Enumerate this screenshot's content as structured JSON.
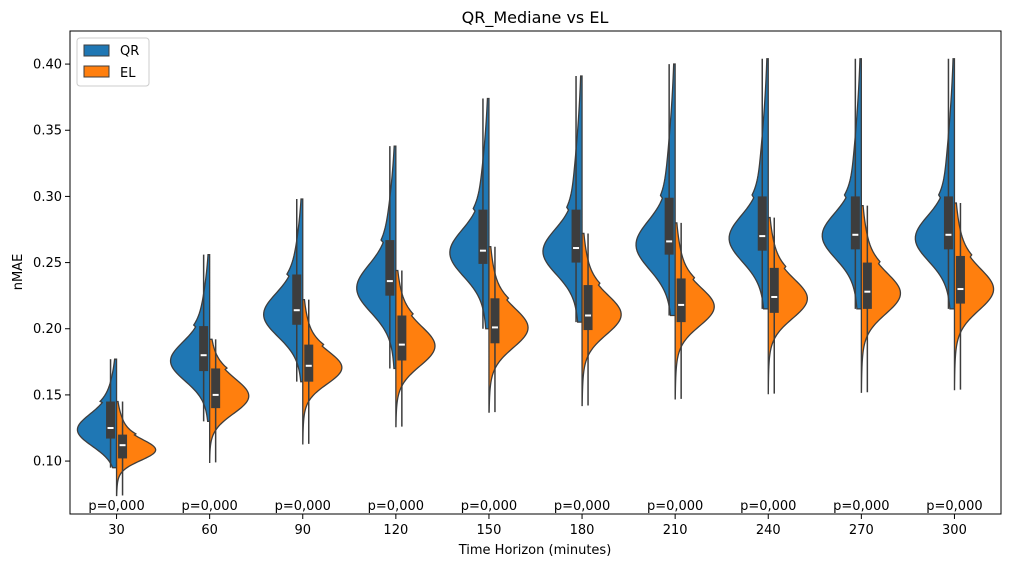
{
  "chart_data": {
    "type": "violin",
    "title": "QR_Mediane vs EL",
    "xlabel": "Time Horizon (minutes)",
    "ylabel": "nMAE",
    "categories": [
      "30",
      "60",
      "90",
      "120",
      "150",
      "180",
      "210",
      "240",
      "270",
      "300"
    ],
    "ylim": [
      0.06,
      0.425
    ],
    "yticks": [
      0.1,
      0.15,
      0.2,
      0.25,
      0.3,
      0.35,
      0.4
    ],
    "ytick_labels": [
      "0.10",
      "0.15",
      "0.20",
      "0.25",
      "0.30",
      "0.35",
      "0.40"
    ],
    "grid": false,
    "legend_position": "top-left",
    "p_value_labels": [
      "p=0,000",
      "p=0,000",
      "p=0,000",
      "p=0,000",
      "p=0,000",
      "p=0,000",
      "p=0,000",
      "p=0,000",
      "p=0,000",
      "p=0,000"
    ],
    "series": [
      {
        "name": "QR",
        "color": "#1f77b4",
        "side": "left",
        "violins": [
          {
            "min": 0.095,
            "q1": 0.117,
            "median": 0.125,
            "q3": 0.145,
            "max": 0.177,
            "mode": 0.123
          },
          {
            "min": 0.13,
            "q1": 0.168,
            "median": 0.18,
            "q3": 0.202,
            "max": 0.256,
            "mode": 0.175
          },
          {
            "min": 0.16,
            "q1": 0.203,
            "median": 0.214,
            "q3": 0.241,
            "max": 0.298,
            "mode": 0.21
          },
          {
            "min": 0.17,
            "q1": 0.225,
            "median": 0.236,
            "q3": 0.267,
            "max": 0.338,
            "mode": 0.23
          },
          {
            "min": 0.2,
            "q1": 0.249,
            "median": 0.259,
            "q3": 0.29,
            "max": 0.374,
            "mode": 0.257
          },
          {
            "min": 0.205,
            "q1": 0.25,
            "median": 0.261,
            "q3": 0.29,
            "max": 0.391,
            "mode": 0.258
          },
          {
            "min": 0.21,
            "q1": 0.256,
            "median": 0.266,
            "q3": 0.299,
            "max": 0.4,
            "mode": 0.263
          },
          {
            "min": 0.215,
            "q1": 0.259,
            "median": 0.27,
            "q3": 0.3,
            "max": 0.404,
            "mode": 0.268
          },
          {
            "min": 0.215,
            "q1": 0.26,
            "median": 0.271,
            "q3": 0.3,
            "max": 0.404,
            "mode": 0.27
          },
          {
            "min": 0.215,
            "q1": 0.26,
            "median": 0.271,
            "q3": 0.3,
            "max": 0.404,
            "mode": 0.268
          }
        ]
      },
      {
        "name": "EL",
        "color": "#ff7f0e",
        "side": "right",
        "violins": [
          {
            "min": 0.074,
            "q1": 0.102,
            "median": 0.112,
            "q3": 0.12,
            "max": 0.145,
            "mode": 0.108
          },
          {
            "min": 0.099,
            "q1": 0.14,
            "median": 0.15,
            "q3": 0.17,
            "max": 0.192,
            "mode": 0.148
          },
          {
            "min": 0.113,
            "q1": 0.16,
            "median": 0.172,
            "q3": 0.188,
            "max": 0.222,
            "mode": 0.17
          },
          {
            "min": 0.126,
            "q1": 0.176,
            "median": 0.188,
            "q3": 0.21,
            "max": 0.244,
            "mode": 0.186
          },
          {
            "min": 0.137,
            "q1": 0.189,
            "median": 0.201,
            "q3": 0.223,
            "max": 0.262,
            "mode": 0.2
          },
          {
            "min": 0.142,
            "q1": 0.199,
            "median": 0.21,
            "q3": 0.233,
            "max": 0.272,
            "mode": 0.21
          },
          {
            "min": 0.147,
            "q1": 0.205,
            "median": 0.218,
            "q3": 0.238,
            "max": 0.28,
            "mode": 0.216
          },
          {
            "min": 0.151,
            "q1": 0.212,
            "median": 0.224,
            "q3": 0.246,
            "max": 0.284,
            "mode": 0.222
          },
          {
            "min": 0.152,
            "q1": 0.215,
            "median": 0.228,
            "q3": 0.25,
            "max": 0.293,
            "mode": 0.226
          },
          {
            "min": 0.154,
            "q1": 0.219,
            "median": 0.23,
            "q3": 0.255,
            "max": 0.295,
            "mode": 0.229
          }
        ]
      }
    ]
  }
}
